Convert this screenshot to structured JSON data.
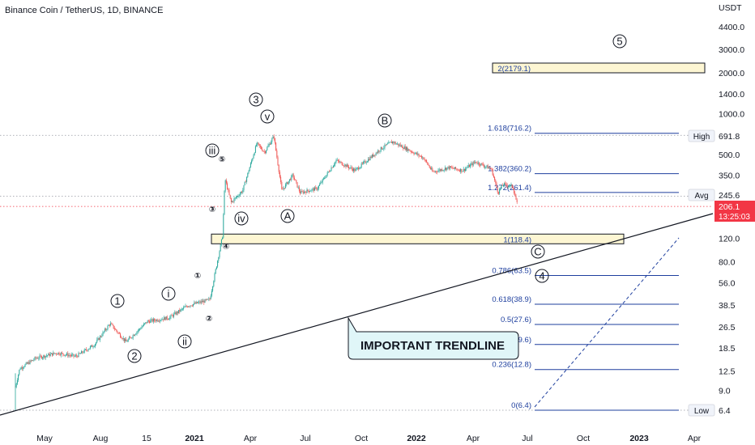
{
  "header": {
    "title": "Binance Coin / TetherUS, 1D, BINANCE",
    "currency": "USDT"
  },
  "colors": {
    "up": "#26a69a",
    "down": "#ef5350",
    "fib": "#1e3f9e",
    "zone_fill": "#fdf6d3",
    "price_badge": "#f23645",
    "trend": "#131722"
  },
  "y_axis": {
    "scale": "log",
    "ticks": [
      "4400.0",
      "3000.0",
      "2000.0",
      "1400.0",
      "1000.0",
      "500.0",
      "350.0",
      "120.0",
      "80.0",
      "56.0",
      "38.5",
      "26.5",
      "18.5",
      "12.5",
      "9.0",
      "6.4"
    ],
    "tick_values": [
      4400,
      3000,
      2000,
      1400,
      1000,
      500,
      350,
      120,
      80,
      56,
      38.5,
      26.5,
      18.5,
      12.5,
      9.0,
      6.4
    ]
  },
  "x_axis": {
    "ticks": [
      "May",
      "Aug",
      "15",
      "2021",
      "Apr",
      "Jul",
      "Oct",
      "2022",
      "Apr",
      "Jul",
      "Oct",
      "2023",
      "Apr"
    ],
    "bold": [
      "2021",
      "2022",
      "2023"
    ]
  },
  "badges": {
    "high": {
      "label": "High",
      "value": "691.8",
      "price": 691.8
    },
    "avg": {
      "label": "Avg",
      "value": "245.6",
      "price": 245.6
    },
    "low": {
      "label": "Low",
      "value": "6.4",
      "price": 6.4
    },
    "current": {
      "value": "206.1",
      "countdown": "13:25:03",
      "price": 206.1
    }
  },
  "fib_levels": [
    {
      "label": "2(2179.1)",
      "price": 2179.1,
      "boxed": true
    },
    {
      "label": "1.618(716.2)",
      "price": 716.2
    },
    {
      "label": "1.382(360.2)",
      "price": 360.2
    },
    {
      "label": "1.272(261.4)",
      "price": 261.4
    },
    {
      "label": "1(118.4)",
      "price": 118.4,
      "boxed": true
    },
    {
      "label": "0.786(63.5)",
      "price": 63.5
    },
    {
      "label": "0.618(38.9)",
      "price": 38.9
    },
    {
      "label": "0.5(27.6)",
      "price": 27.6
    },
    {
      "label": "0.382(19.6)",
      "price": 19.6
    },
    {
      "label": "0.236(12.8)",
      "price": 12.8
    },
    {
      "label": "0(6.4)",
      "price": 6.4
    }
  ],
  "wave_labels": [
    {
      "text": "1",
      "circled": true
    },
    {
      "text": "2",
      "circled": true
    },
    {
      "text": "i",
      "circled": true
    },
    {
      "text": "ii",
      "circled": true
    },
    {
      "text": "iii",
      "circled": true
    },
    {
      "text": "iv",
      "circled": true
    },
    {
      "text": "v",
      "circled": true
    },
    {
      "text": "3",
      "circled": true
    },
    {
      "text": "A",
      "circled": true
    },
    {
      "text": "B",
      "circled": true
    },
    {
      "text": "C",
      "circled": true
    },
    {
      "text": "4",
      "circled": true
    },
    {
      "text": "5",
      "circled": true
    }
  ],
  "minor_wave_labels": [
    "①",
    "②",
    "③",
    "④",
    "⑤"
  ],
  "annotation": {
    "text": "IMPORTANT TRENDLINE"
  },
  "chart_data": {
    "type": "candlestick",
    "title": "Binance Coin / TetherUS, 1D, BINANCE",
    "y_scale": "log",
    "ylim": [
      4.6,
      6500
    ],
    "price_path": [
      {
        "date": "2020-03-13",
        "price": 9.5
      },
      {
        "date": "2020-03-20",
        "price": 13.0
      },
      {
        "date": "2020-04-15",
        "price": 15.5
      },
      {
        "date": "2020-05-20",
        "price": 17.0
      },
      {
        "date": "2020-06-20",
        "price": 16.0
      },
      {
        "date": "2020-07-20",
        "price": 19.5
      },
      {
        "date": "2020-08-15",
        "price": 28.0
      },
      {
        "date": "2020-09-10",
        "price": 20.5
      },
      {
        "date": "2020-10-15",
        "price": 29.0
      },
      {
        "date": "2020-11-20",
        "price": 31.0
      },
      {
        "date": "2020-12-20",
        "price": 38.0
      },
      {
        "date": "2021-01-25",
        "price": 42.0
      },
      {
        "date": "2021-02-15",
        "price": 125.0
      },
      {
        "date": "2021-02-19",
        "price": 330.0
      },
      {
        "date": "2021-03-01",
        "price": 220.0
      },
      {
        "date": "2021-03-20",
        "price": 270.0
      },
      {
        "date": "2021-04-12",
        "price": 600.0
      },
      {
        "date": "2021-04-25",
        "price": 520.0
      },
      {
        "date": "2021-05-10",
        "price": 680.0
      },
      {
        "date": "2021-05-23",
        "price": 270.0
      },
      {
        "date": "2021-06-10",
        "price": 350.0
      },
      {
        "date": "2021-06-22",
        "price": 260.0
      },
      {
        "date": "2021-07-20",
        "price": 280.0
      },
      {
        "date": "2021-08-20",
        "price": 450.0
      },
      {
        "date": "2021-09-20",
        "price": 380.0
      },
      {
        "date": "2021-11-01",
        "price": 550.0
      },
      {
        "date": "2021-11-20",
        "price": 620.0
      },
      {
        "date": "2021-12-20",
        "price": 530.0
      },
      {
        "date": "2022-01-10",
        "price": 470.0
      },
      {
        "date": "2022-01-25",
        "price": 370.0
      },
      {
        "date": "2022-02-20",
        "price": 400.0
      },
      {
        "date": "2022-03-15",
        "price": 380.0
      },
      {
        "date": "2022-04-05",
        "price": 440.0
      },
      {
        "date": "2022-05-01",
        "price": 390.0
      },
      {
        "date": "2022-05-12",
        "price": 260.0
      },
      {
        "date": "2022-05-20",
        "price": 300.0
      },
      {
        "date": "2022-06-05",
        "price": 290.0
      },
      {
        "date": "2022-06-13",
        "price": 206.1
      }
    ],
    "series": [
      {
        "name": "BNBUSDT",
        "values": "see price_path"
      }
    ]
  }
}
